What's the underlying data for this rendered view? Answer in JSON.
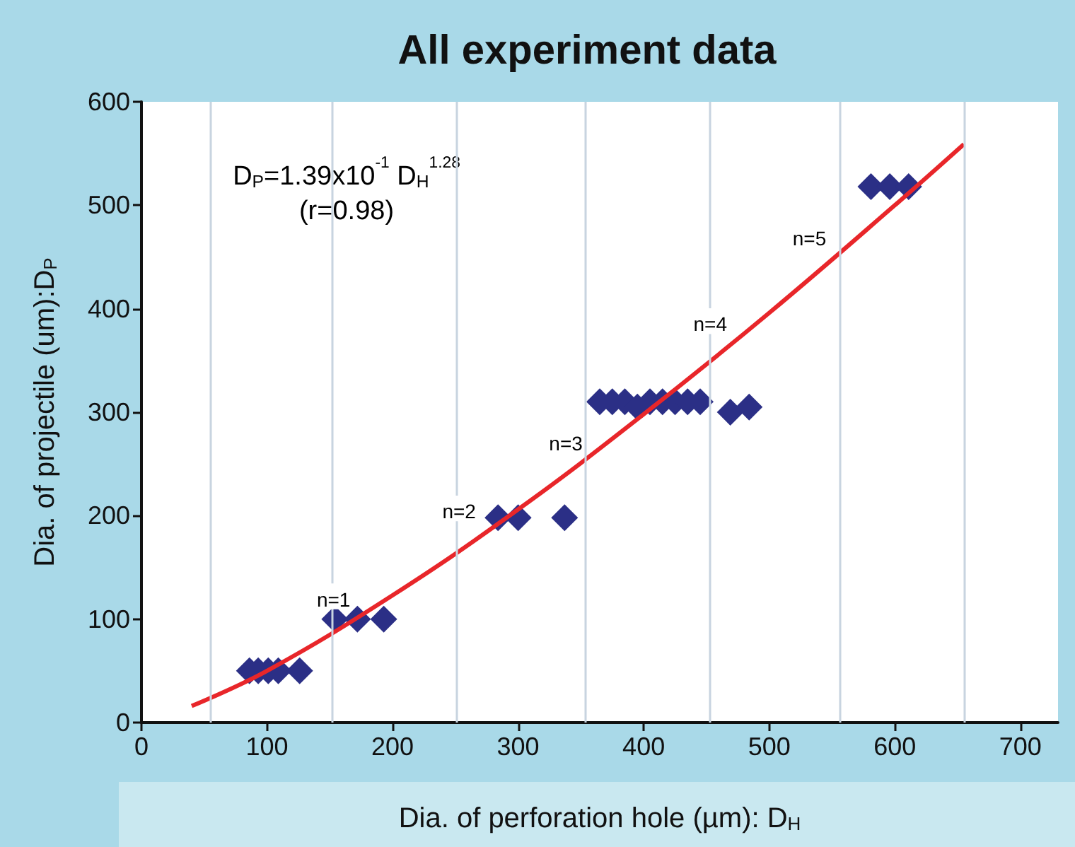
{
  "chart_data": {
    "type": "scatter",
    "title": "All experiment data",
    "xlabel": "Dia. of perforation hole (µm): D$_{H}$",
    "ylabel": "Dia. of projectile (um):D$_{P}$",
    "xlim": [
      0,
      730
    ],
    "xticks": [
      0,
      100,
      200,
      300,
      400,
      500,
      600,
      700
    ],
    "ylim": [
      0,
      600
    ],
    "yticks": [
      0,
      100,
      200,
      300,
      400,
      500,
      600
    ],
    "grid": false,
    "marker": "diamond",
    "series": [
      {
        "color": "#2b2f86",
        "x": [
          86,
          93,
          101,
          109,
          126,
          154,
          172,
          193,
          284,
          300,
          337,
          365,
          375,
          385,
          395,
          405,
          415,
          425,
          435,
          445,
          469,
          484,
          581,
          596,
          611
        ],
        "values": [
          50,
          50,
          50,
          50,
          50,
          100,
          100,
          100,
          198,
          198,
          198,
          310,
          310,
          310,
          305,
          310,
          310,
          310,
          310,
          310,
          300,
          305,
          518,
          518,
          518
        ]
      },
      {
        "type": "line",
        "marker": "none",
        "color": "#e8262a",
        "x": [
          40,
          100,
          200,
          300,
          400,
          500,
          600,
          655
        ],
        "values": [
          16,
          50,
          123,
          206,
          298,
          396,
          500,
          559
        ]
      }
    ],
    "ref_lines": [
      {
        "axis": "x",
        "value": 55,
        "color": "#c8d4e0"
      },
      {
        "axis": "x",
        "value": 152,
        "color": "#c8d4e0"
      },
      {
        "axis": "x",
        "value": 251,
        "color": "#c8d4e0"
      },
      {
        "axis": "x",
        "value": 354,
        "color": "#c8d4e0"
      },
      {
        "axis": "x",
        "value": 453,
        "color": "#c8d4e0"
      },
      {
        "axis": "x",
        "value": 556,
        "color": "#c8d4e0"
      },
      {
        "axis": "x",
        "value": 655,
        "color": "#c8d4e0"
      }
    ],
    "annotations": [
      "D$_{P}$=1.39x10$^{-1}$ D$_{H}$$^{1.28}$",
      "(r=0.98)",
      {
        "text": "n=1",
        "x": 153,
        "y": 122
      },
      {
        "text": "n=2",
        "x": 253,
        "y": 207
      },
      {
        "text": "n=3",
        "x": 338,
        "y": 273
      },
      {
        "text": "n=4",
        "x": 453,
        "y": 388
      },
      {
        "text": "n=5",
        "x": 532,
        "y": 471
      }
    ]
  }
}
